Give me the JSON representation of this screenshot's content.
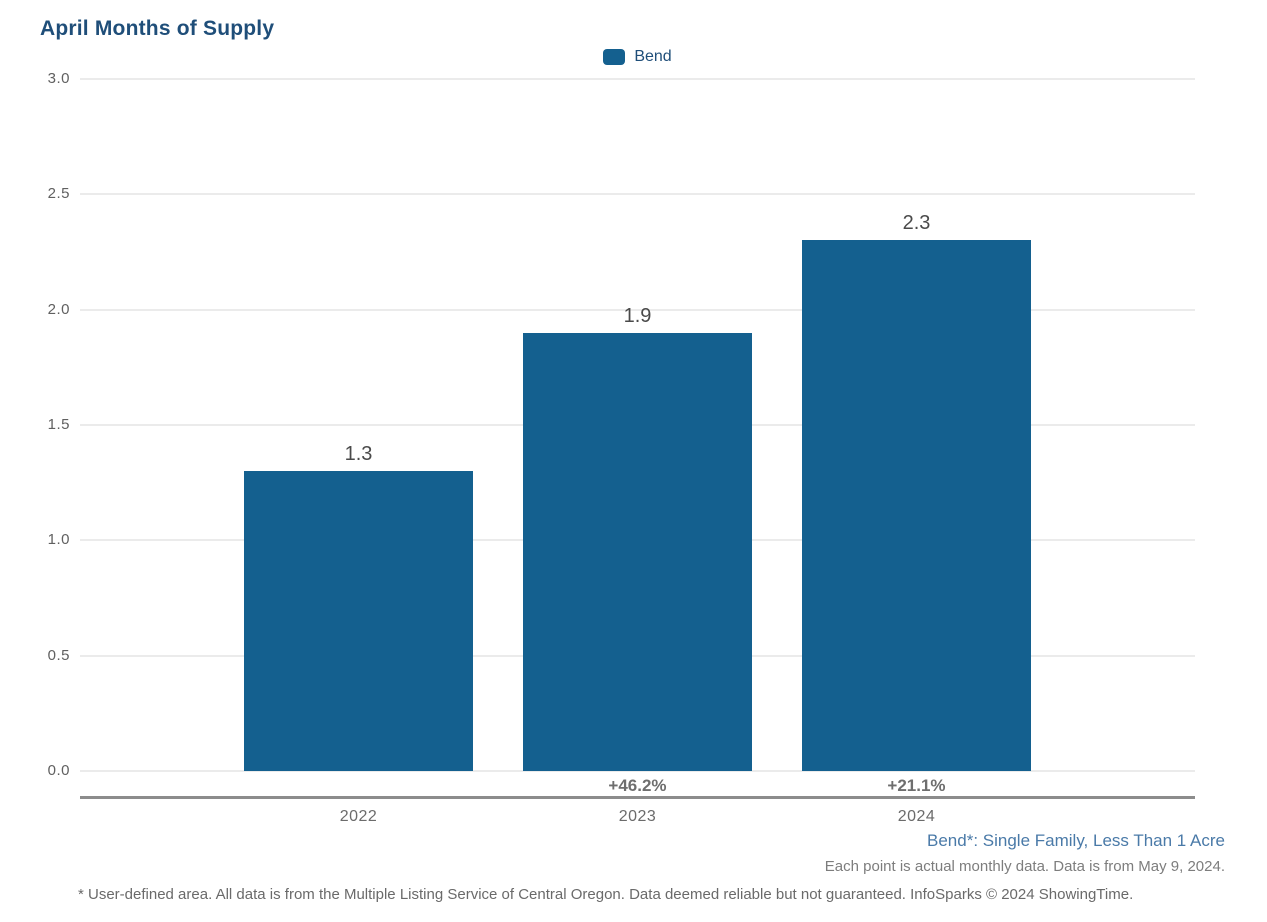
{
  "title": "April Months of Supply",
  "legend": {
    "items": [
      {
        "label": "Bend",
        "color": "#14608f"
      }
    ]
  },
  "chart_data": {
    "type": "bar",
    "title": "April Months of Supply",
    "categories": [
      "2022",
      "2023",
      "2024"
    ],
    "series": [
      {
        "name": "Bend",
        "values": [
          1.3,
          1.9,
          2.3
        ]
      }
    ],
    "value_labels": [
      "1.3",
      "1.9",
      "2.3"
    ],
    "pct_change_labels": [
      "",
      "+46.2%",
      "+21.1%"
    ],
    "xlabel": "",
    "ylabel": "",
    "ylim": [
      0.0,
      3.0
    ],
    "ytick_step": 0.5,
    "ytick_labels": [
      "0.0",
      "0.5",
      "1.0",
      "1.5",
      "2.0",
      "2.5",
      "3.0"
    ],
    "grid": true,
    "legend_position": "top-center",
    "bar_color": "#14608f"
  },
  "colors": {
    "bar": "#14608f",
    "title": "#1f4e79",
    "footer_link": "#4a7aa8",
    "gridline": "#ebebeb",
    "axis_line": "#8c8c8c"
  },
  "footer": {
    "series_note": "Bend*: Single Family, Less Than 1 Acre",
    "data_note": "Each point is actual monthly data. Data is from May 9, 2024.",
    "disclaimer": "* User-defined area. All data is from the Multiple Listing Service of Central Oregon. Data deemed reliable but not guaranteed. InfoSparks © 2024 ShowingTime."
  }
}
